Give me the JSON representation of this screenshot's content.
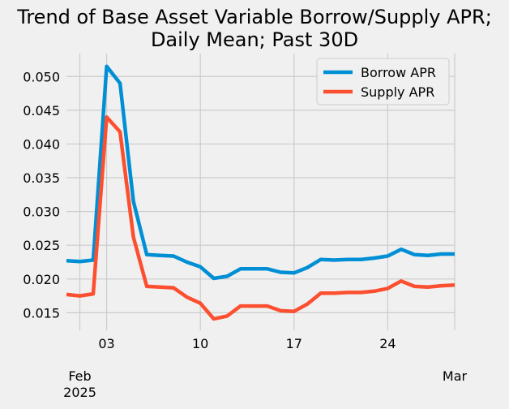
{
  "chart_data": {
    "type": "line",
    "title_lines": [
      "Trend of Base Asset Variable Borrow/Supply APR;",
      "Daily Mean; Past 30D"
    ],
    "xlabel": "",
    "ylabel": "",
    "x": [
      "2025-01-31",
      "2025-02-01",
      "2025-02-02",
      "2025-02-03",
      "2025-02-04",
      "2025-02-05",
      "2025-02-06",
      "2025-02-07",
      "2025-02-08",
      "2025-02-09",
      "2025-02-10",
      "2025-02-11",
      "2025-02-12",
      "2025-02-13",
      "2025-02-14",
      "2025-02-15",
      "2025-02-16",
      "2025-02-17",
      "2025-02-18",
      "2025-02-19",
      "2025-02-20",
      "2025-02-21",
      "2025-02-22",
      "2025-02-23",
      "2025-02-24",
      "2025-02-25",
      "2025-02-26",
      "2025-02-27",
      "2025-02-28",
      "2025-03-01"
    ],
    "series": [
      {
        "name": "Borrow APR",
        "color": "#008fd5",
        "values": [
          0.0227,
          0.0226,
          0.0228,
          0.0515,
          0.049,
          0.0315,
          0.0236,
          0.0235,
          0.0234,
          0.0225,
          0.0218,
          0.0201,
          0.0204,
          0.0215,
          0.0215,
          0.0215,
          0.021,
          0.0209,
          0.0217,
          0.0229,
          0.0228,
          0.0229,
          0.0229,
          0.0231,
          0.0234,
          0.0244,
          0.0236,
          0.0235,
          0.0237,
          0.0237
        ]
      },
      {
        "name": "Supply APR",
        "color": "#fc4f30",
        "values": [
          0.0177,
          0.0175,
          0.0178,
          0.044,
          0.0418,
          0.0262,
          0.0189,
          0.0188,
          0.0187,
          0.0173,
          0.0164,
          0.0141,
          0.0145,
          0.016,
          0.016,
          0.016,
          0.0153,
          0.0152,
          0.0163,
          0.0179,
          0.0179,
          0.018,
          0.018,
          0.0182,
          0.0186,
          0.0197,
          0.0189,
          0.0188,
          0.019,
          0.0191
        ]
      }
    ],
    "ylim": [
      0.0124,
      0.0534
    ],
    "xlim": [
      "2025-01-31",
      "2025-03-01"
    ],
    "yticks": [
      0.015,
      0.02,
      0.025,
      0.03,
      0.035,
      0.04,
      0.045,
      0.05
    ],
    "ytick_labels": [
      "0.015",
      "0.020",
      "0.025",
      "0.030",
      "0.035",
      "0.040",
      "0.045",
      "0.050"
    ],
    "xticks_minor": [
      {
        "x": "2025-02-03",
        "label": "03"
      },
      {
        "x": "2025-02-10",
        "label": "10"
      },
      {
        "x": "2025-02-17",
        "label": "17"
      },
      {
        "x": "2025-02-24",
        "label": "24"
      }
    ],
    "xticks_major": [
      {
        "x": "2025-02-01",
        "label": [
          "Feb",
          "2025"
        ]
      },
      {
        "x": "2025-03-01",
        "label": [
          "Mar"
        ]
      }
    ],
    "grid": true,
    "legend_position": "top-right",
    "background": "#f0f0f0",
    "grid_color": "#cbcbcb"
  }
}
